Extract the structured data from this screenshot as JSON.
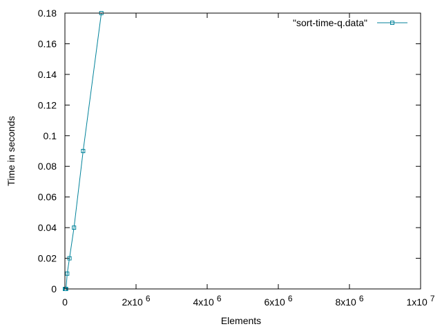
{
  "chart_data": {
    "type": "line",
    "xlabel": "Elements",
    "ylabel": "Time in seconds",
    "xlim": [
      0,
      10000000
    ],
    "ylim": [
      0,
      0.18
    ],
    "grid": false,
    "legend_position": "top-right",
    "x_ticks": [
      {
        "value": 0,
        "base": "0",
        "exp": ""
      },
      {
        "value": 2000000,
        "base": "2x10",
        "exp": "6"
      },
      {
        "value": 4000000,
        "base": "4x10",
        "exp": "6"
      },
      {
        "value": 6000000,
        "base": "6x10",
        "exp": "6"
      },
      {
        "value": 8000000,
        "base": "8x10",
        "exp": "6"
      },
      {
        "value": 10000000,
        "base": "1x10",
        "exp": "7"
      }
    ],
    "y_ticks": [
      {
        "value": 0,
        "label": "0"
      },
      {
        "value": 0.02,
        "label": "0.02"
      },
      {
        "value": 0.04,
        "label": "0.04"
      },
      {
        "value": 0.06,
        "label": "0.06"
      },
      {
        "value": 0.08,
        "label": "0.08"
      },
      {
        "value": 0.1,
        "label": "0.1"
      },
      {
        "value": 0.12,
        "label": "0.12"
      },
      {
        "value": 0.14,
        "label": "0.14"
      },
      {
        "value": 0.16,
        "label": "0.16"
      },
      {
        "value": 0.18,
        "label": "0.18"
      }
    ],
    "series": [
      {
        "name": "\"sort-time-q.data\"",
        "color": "#00829a",
        "points": [
          [
            1000,
            0
          ],
          [
            2000,
            0
          ],
          [
            4000,
            0
          ],
          [
            8000,
            0
          ],
          [
            16000,
            0
          ],
          [
            32000,
            0
          ],
          [
            64000,
            0.01
          ],
          [
            128000,
            0.02
          ],
          [
            256000,
            0.04
          ],
          [
            512000,
            0.09
          ],
          [
            1024000,
            0.18
          ]
        ]
      }
    ]
  }
}
